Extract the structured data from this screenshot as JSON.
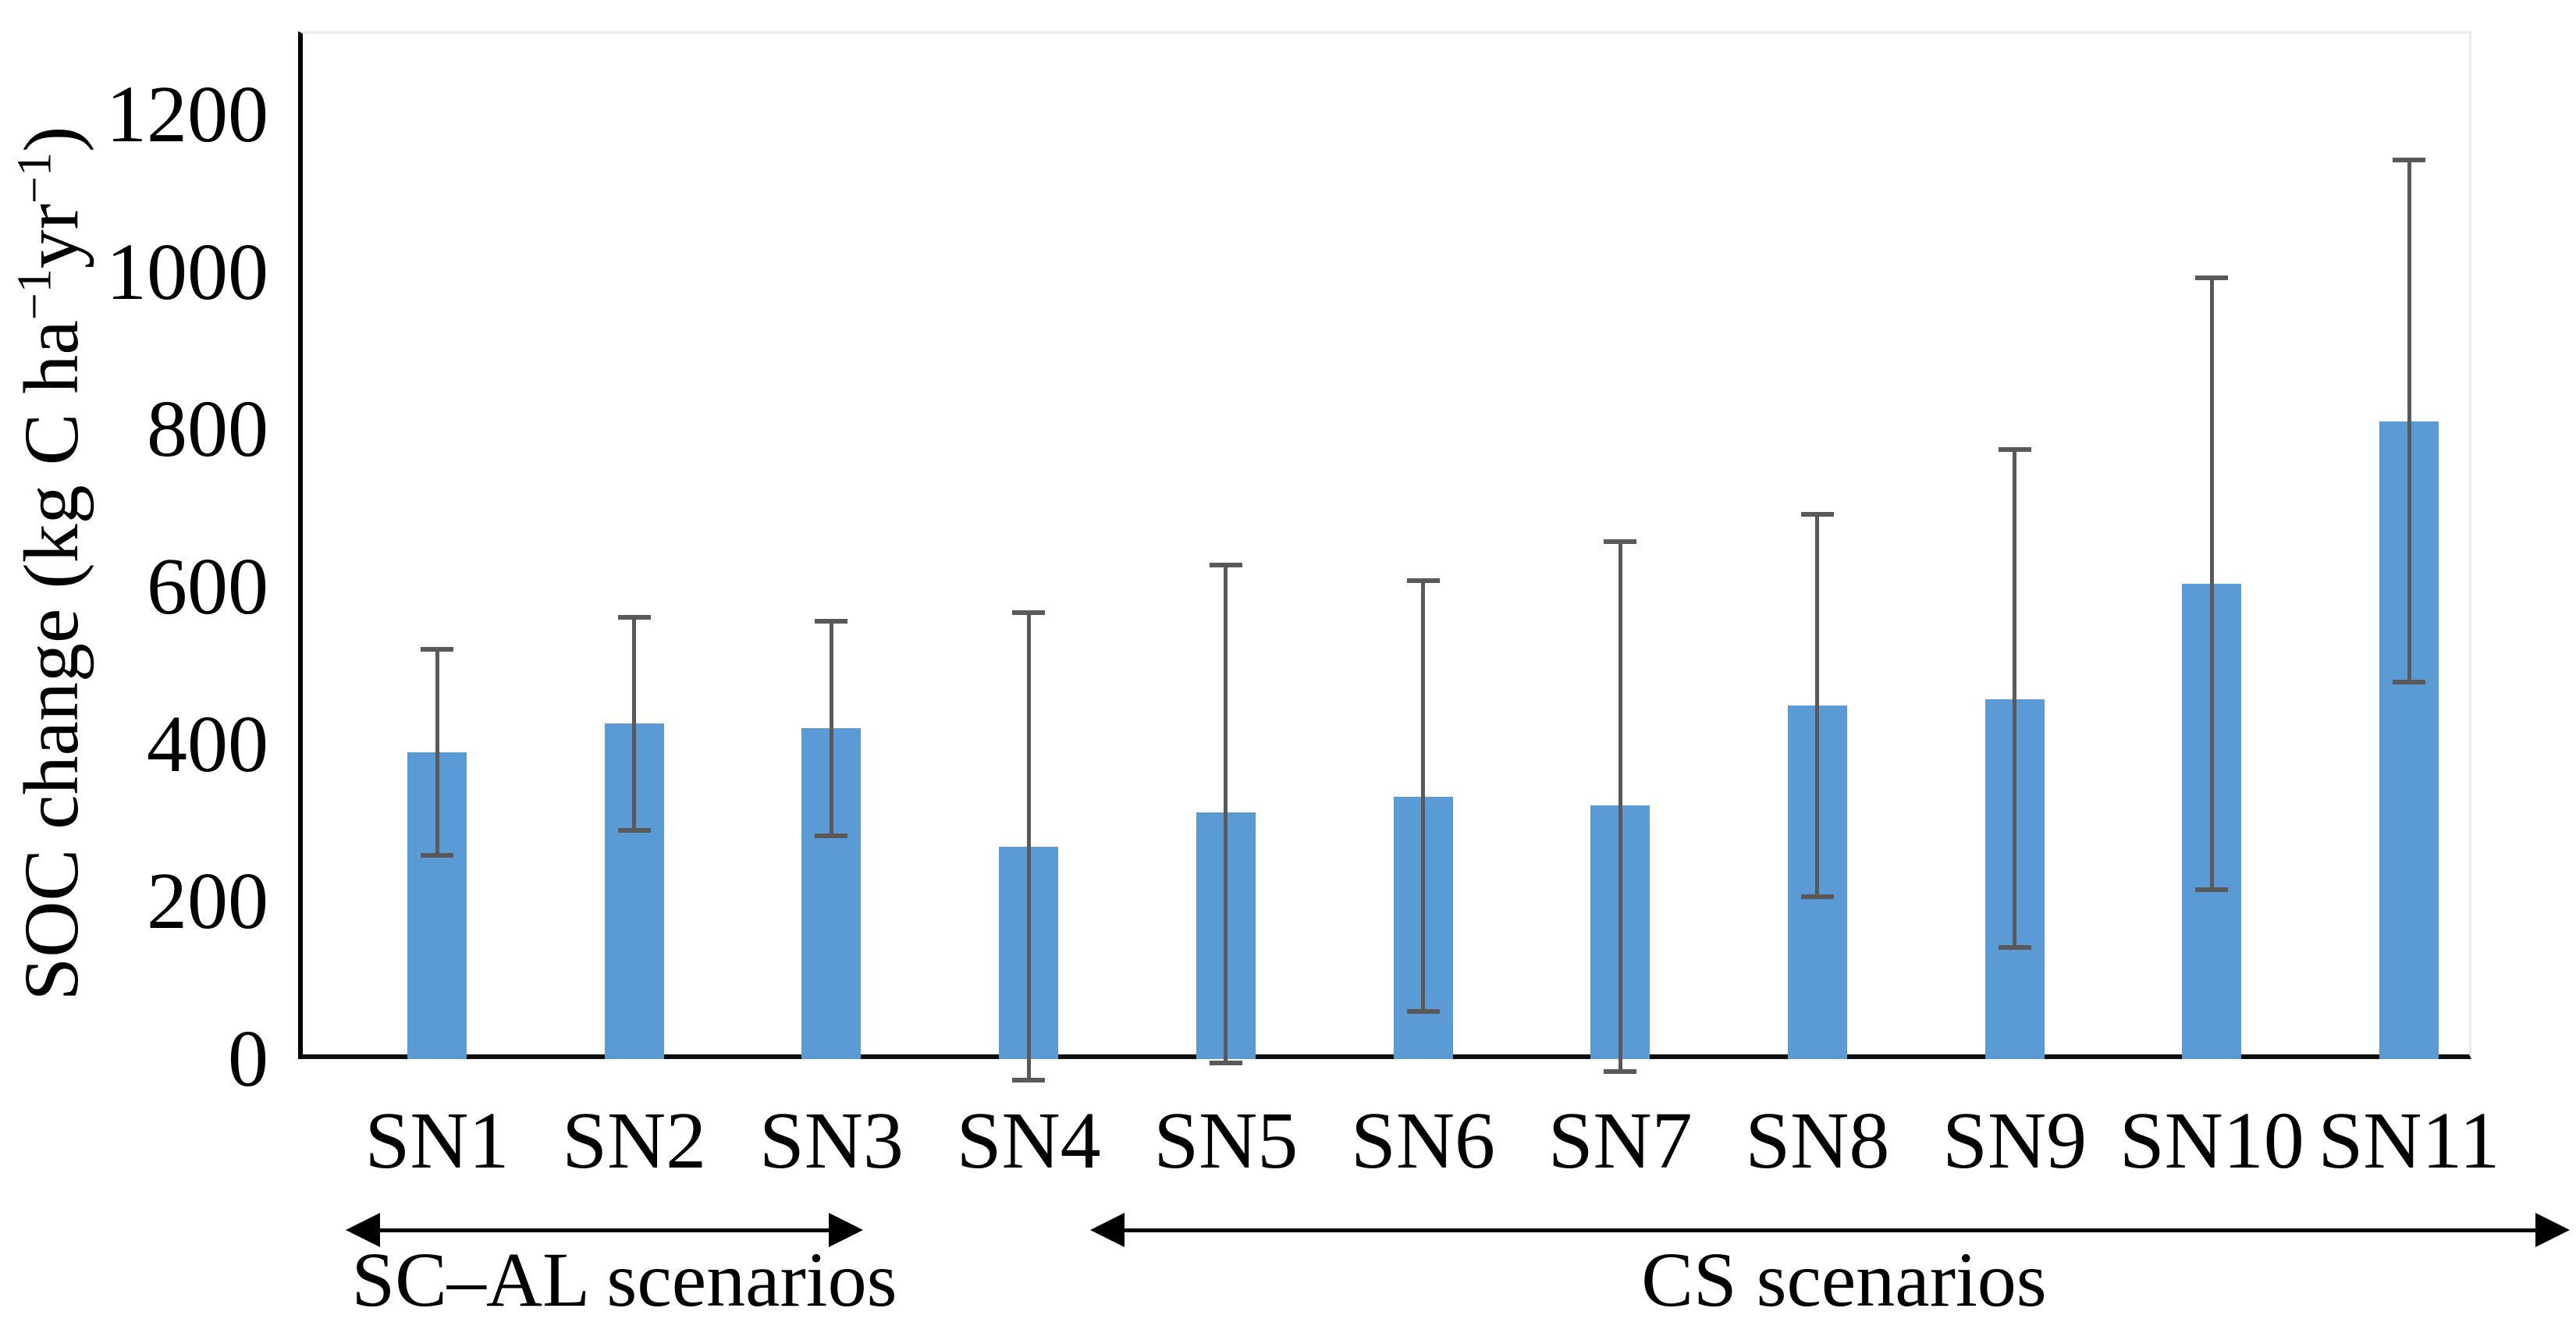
{
  "chart_data": {
    "type": "bar",
    "title": "",
    "ylabel_parts": {
      "prefix": "SOC change (kg C ha",
      "sup1": "−1",
      "mid": "yr",
      "sup2": "−1",
      "suffix": ")"
    },
    "categories": [
      "SN1",
      "SN2",
      "SN3",
      "SN4",
      "SN5",
      "SN6",
      "SN7",
      "SN8",
      "SN9",
      "SN10",
      "SN11"
    ],
    "values": [
      390,
      426,
      420,
      270,
      313,
      333,
      322,
      449,
      457,
      604,
      810
    ],
    "error_low": [
      259,
      291,
      284,
      -27,
      -5,
      60,
      -16,
      206,
      142,
      215,
      479
    ],
    "error_high": [
      521,
      561,
      556,
      567,
      628,
      608,
      657,
      692,
      774,
      993,
      1142
    ],
    "yticks": [
      0,
      200,
      400,
      600,
      800,
      1000,
      1200
    ],
    "ylim": [
      0,
      1200
    ],
    "grid": false,
    "legend": null,
    "groups": [
      {
        "label": "SC–AL scenarios",
        "first_category": "SN1",
        "last_category": "SN3"
      },
      {
        "label": "CS scenarios",
        "first_category": "SN4",
        "last_category": "SN11"
      }
    ],
    "bar_color": "#5B9BD5",
    "error_color": "#595959",
    "axis_color": "#000000"
  }
}
